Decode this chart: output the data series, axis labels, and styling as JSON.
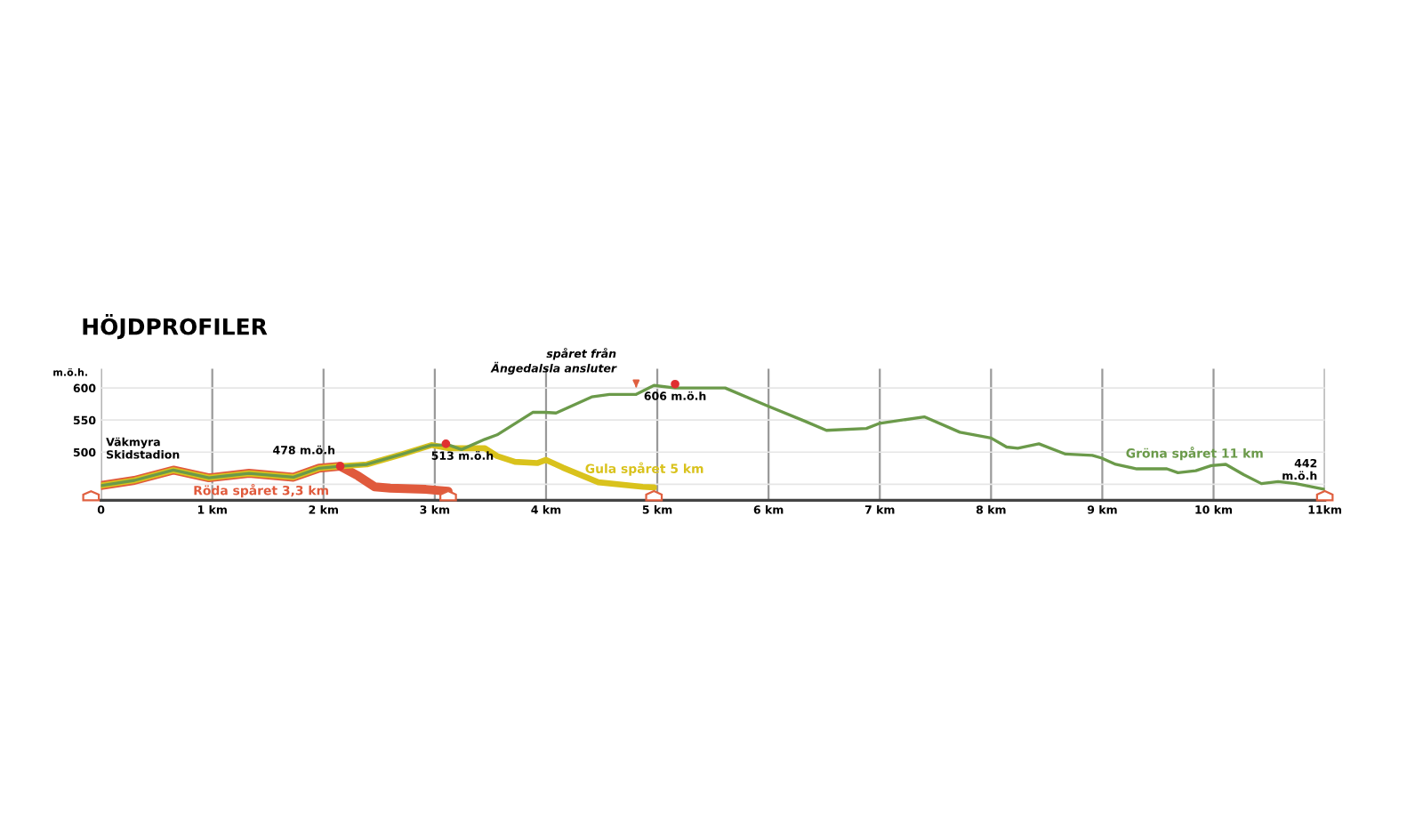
{
  "chart_data": {
    "type": "line",
    "title": "HÖJDPROFILER",
    "ylabel": "m.ö.h.",
    "xlim": [
      0,
      11
    ],
    "ylim": [
      425,
      630
    ],
    "xticks": [
      {
        "value": 0,
        "label": "0"
      },
      {
        "value": 1,
        "label": "1 km"
      },
      {
        "value": 2,
        "label": "2 km"
      },
      {
        "value": 3,
        "label": "3 km"
      },
      {
        "value": 4,
        "label": "4 km"
      },
      {
        "value": 5,
        "label": "5 km"
      },
      {
        "value": 6,
        "label": "6 km"
      },
      {
        "value": 7,
        "label": "7 km"
      },
      {
        "value": 8,
        "label": "8 km"
      },
      {
        "value": 9,
        "label": "9 km"
      },
      {
        "value": 10,
        "label": "10 km"
      },
      {
        "value": 11,
        "label": "11km"
      }
    ],
    "yticks": [
      {
        "value": 450,
        "label": null
      },
      500,
      550,
      600
    ],
    "grid": true,
    "marker": "none",
    "line_style": "solid",
    "series": [
      {
        "name": "Röda spåret 3,3 km",
        "color": "#e05a3c",
        "x": [
          0,
          0.3,
          0.65,
          0.97,
          1.33,
          1.73,
          1.96,
          2.15,
          2.31,
          2.46,
          2.6,
          2.92,
          3.12
        ],
        "values": [
          448,
          456,
          472,
          460,
          467,
          461,
          475,
          478,
          463,
          446,
          444,
          442,
          439
        ]
      },
      {
        "name": "Gula spåret 5 km",
        "color": "#d9c21c",
        "x": [
          0,
          0.3,
          0.65,
          0.97,
          1.33,
          1.73,
          1.96,
          2.15,
          2.39,
          2.71,
          2.97,
          3.13,
          3.45,
          3.56,
          3.72,
          3.92,
          4.0,
          4.15,
          4.47,
          4.87,
          4.97
        ],
        "values": [
          448,
          456,
          472,
          460,
          467,
          461,
          475,
          478,
          481,
          497,
          511,
          506,
          506,
          494,
          485,
          483,
          488,
          476,
          453,
          446,
          445
        ]
      },
      {
        "name": "Gröna spåret 11 km",
        "color": "#6b9a4a",
        "x": [
          0,
          0.3,
          0.65,
          0.97,
          1.33,
          1.73,
          1.96,
          2.15,
          2.39,
          2.71,
          2.97,
          3.13,
          3.24,
          3.45,
          3.56,
          3.88,
          3.99,
          4.09,
          4.41,
          4.57,
          4.81,
          4.97,
          5.16,
          5.61,
          5.99,
          6.33,
          6.52,
          6.88,
          7.0,
          7.4,
          7.72,
          8.0,
          8.14,
          8.24,
          8.43,
          8.67,
          8.91,
          8.99,
          9.12,
          9.31,
          9.58,
          9.68,
          9.84,
          9.98,
          10.11,
          10.27,
          10.43,
          10.58,
          10.74,
          11.0
        ],
        "values": [
          448,
          456,
          472,
          460,
          467,
          461,
          475,
          478,
          481,
          497,
          511,
          511,
          504,
          520,
          527,
          562,
          562,
          561,
          586,
          590,
          590,
          604,
          600,
          600,
          572,
          548,
          534,
          537,
          545,
          555,
          531,
          522,
          508,
          506,
          513,
          497,
          495,
          491,
          481,
          474,
          474,
          468,
          471,
          479,
          481,
          465,
          451,
          454,
          451,
          442
        ]
      }
    ],
    "annotations": [
      {
        "text": "Väkmyra\nSkidstadion",
        "x": 0,
        "y": 448
      },
      {
        "text": "478 m.ö.h",
        "x": 2.15,
        "y": 478
      },
      {
        "text": "513 m.ö.h",
        "x": 3.1,
        "y": 513
      },
      {
        "text": "spåret från\nÄngedalsla ansluter",
        "x": 4.81,
        "y": 590
      },
      {
        "text": "606 m.ö.h",
        "x": 5.16,
        "y": 606
      },
      {
        "text": "442\nm.ö.h",
        "x": 11,
        "y": 442
      }
    ]
  }
}
